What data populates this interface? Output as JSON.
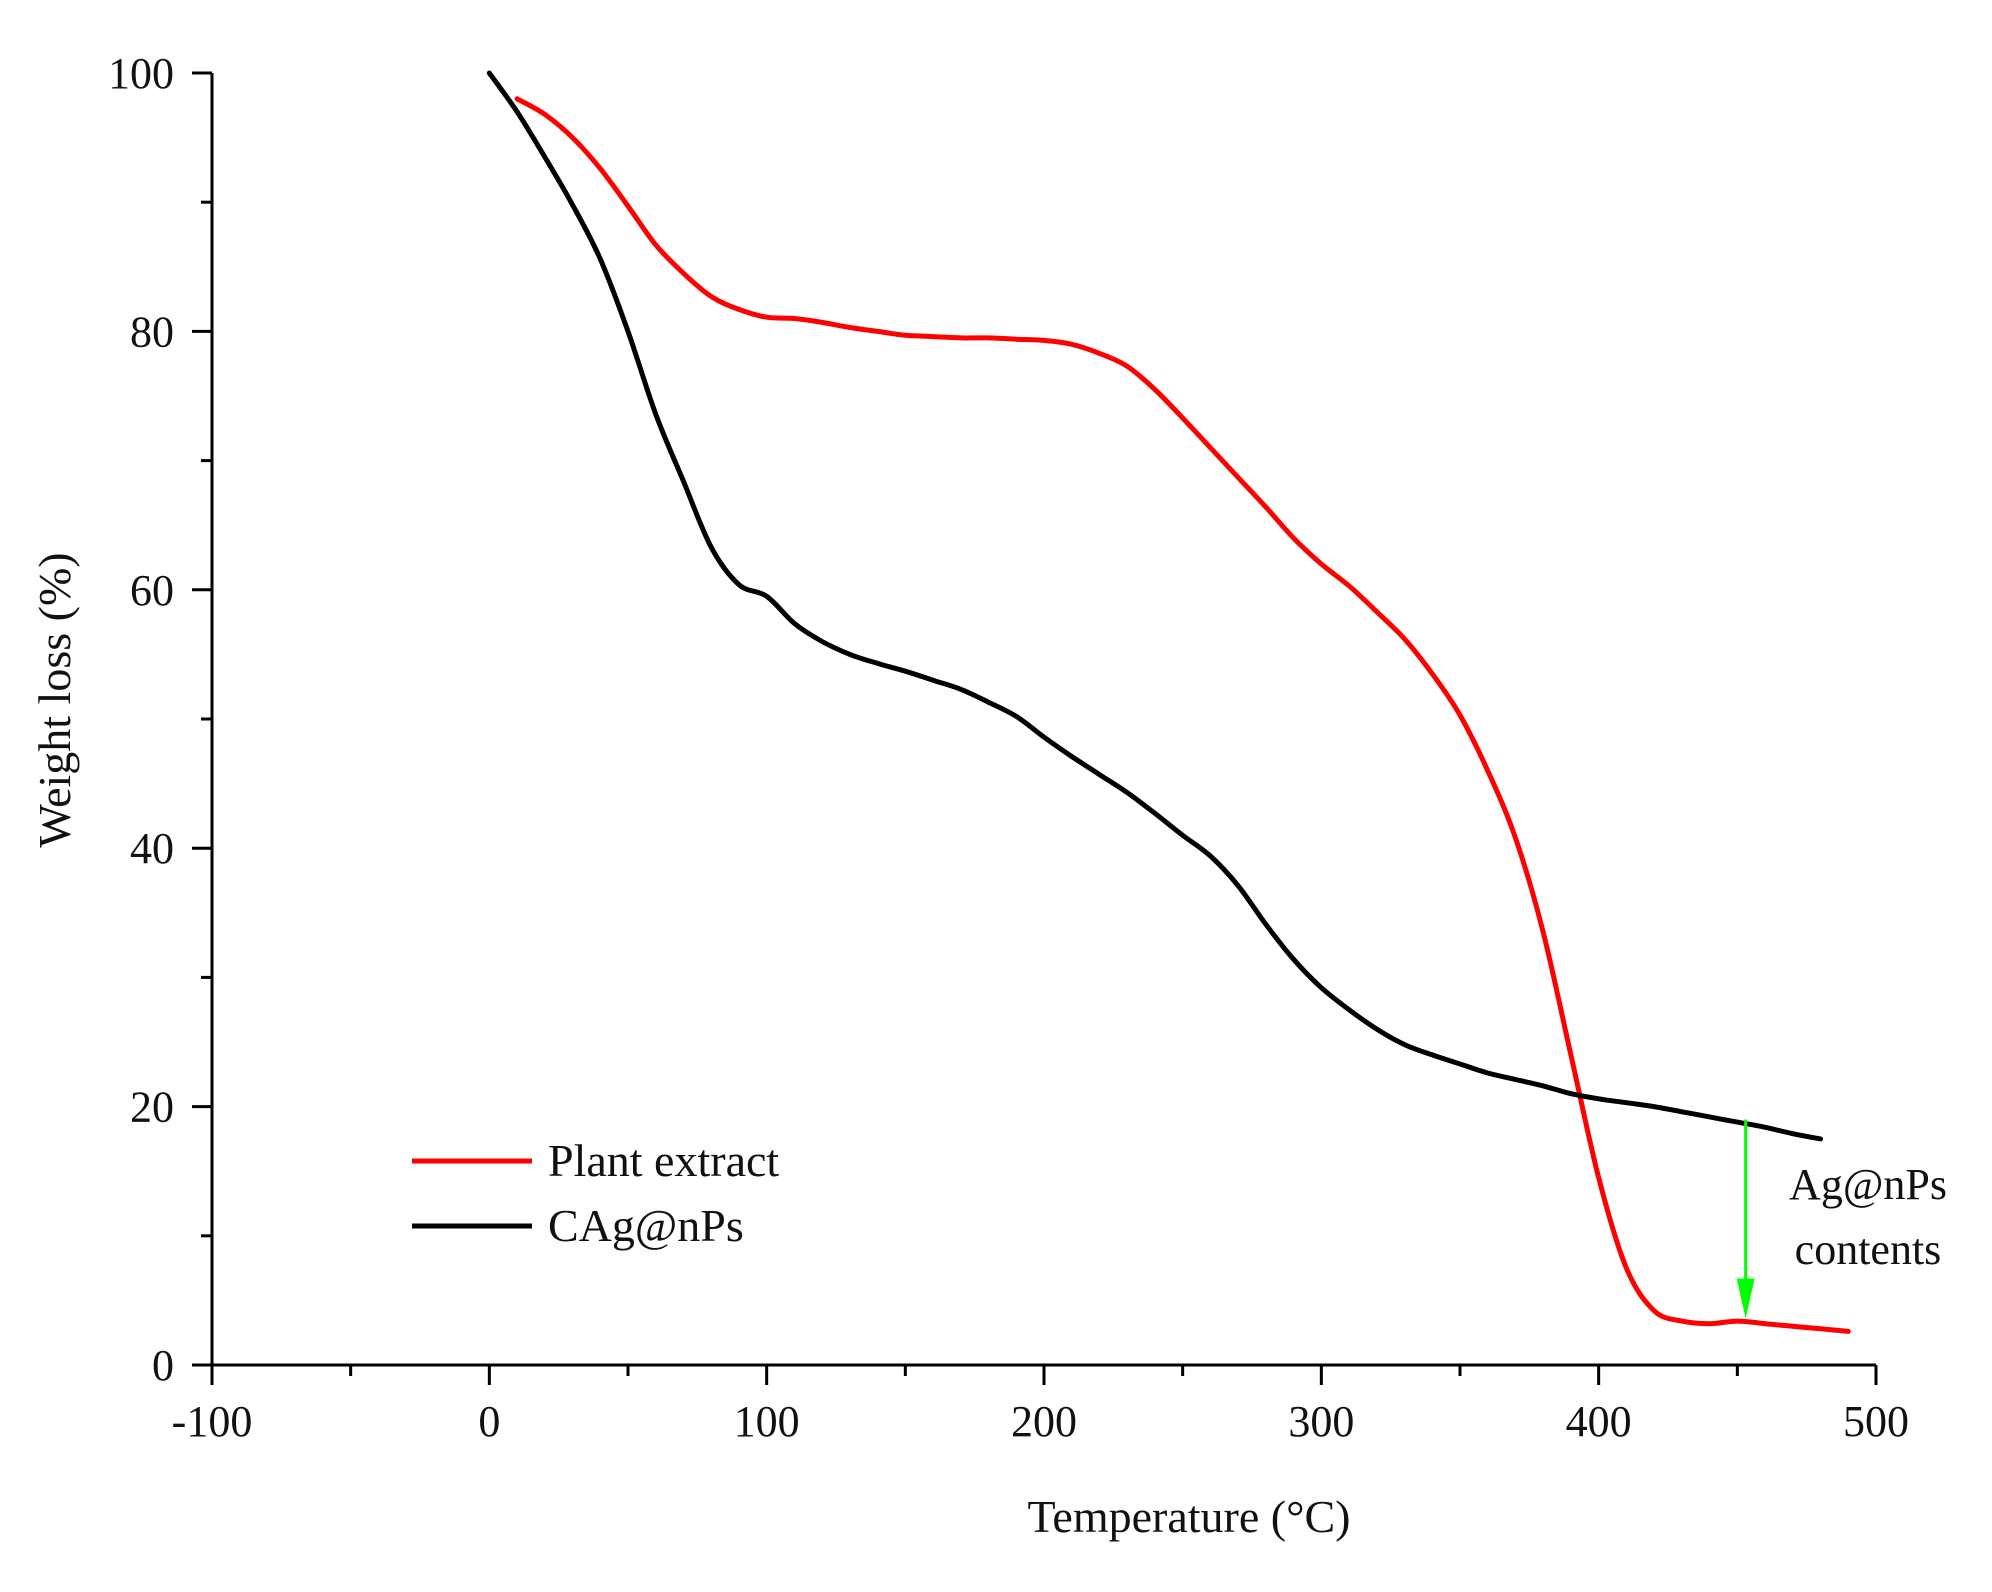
{
  "chart_data": {
    "type": "line",
    "title": "",
    "xlabel": "Temperature (°C)",
    "ylabel": "Weight loss (%)",
    "xlim": [
      -100,
      500
    ],
    "ylim": [
      0,
      100
    ],
    "x_ticks": [
      -100,
      0,
      100,
      200,
      300,
      400,
      500
    ],
    "x_tick_labels": [
      "-100",
      "0",
      "100",
      "200",
      "300",
      "400",
      "500"
    ],
    "x_minor_ticks": [
      -50,
      50,
      150,
      250,
      350,
      450
    ],
    "y_ticks": [
      0,
      20,
      40,
      60,
      80,
      100
    ],
    "y_tick_labels": [
      "0",
      "20",
      "40",
      "60",
      "80",
      "100"
    ],
    "y_minor_ticks": [
      10,
      30,
      50,
      70,
      90
    ],
    "grid": false,
    "legend_position": "lower-left",
    "series": [
      {
        "name": "Plant extract",
        "color": "#ff0000",
        "x": [
          10,
          20,
          30,
          40,
          50,
          60,
          70,
          80,
          90,
          100,
          110,
          120,
          130,
          140,
          150,
          160,
          170,
          180,
          190,
          200,
          210,
          220,
          230,
          240,
          250,
          260,
          270,
          280,
          290,
          300,
          310,
          320,
          330,
          340,
          350,
          360,
          370,
          380,
          390,
          400,
          410,
          420,
          430,
          440,
          450,
          460,
          470,
          480,
          490
        ],
        "y": [
          98,
          96.8,
          95,
          92.6,
          89.7,
          86.7,
          84.5,
          82.7,
          81.7,
          81.1,
          81,
          80.7,
          80.3,
          80,
          79.7,
          79.6,
          79.5,
          79.5,
          79.4,
          79.3,
          79,
          78.3,
          77.3,
          75.5,
          73.3,
          71,
          68.7,
          66.4,
          64,
          62,
          60.3,
          58.3,
          56.2,
          53.5,
          50.3,
          46,
          40.8,
          33.5,
          24,
          14.5,
          7.5,
          4.2,
          3.4,
          3.2,
          3.4,
          3.2,
          3,
          2.8,
          2.6
        ]
      },
      {
        "name": "CAg@nPs",
        "color": "#000000",
        "x": [
          0,
          10,
          20,
          30,
          40,
          50,
          60,
          70,
          80,
          90,
          100,
          110,
          120,
          130,
          140,
          150,
          160,
          170,
          180,
          190,
          200,
          210,
          220,
          230,
          240,
          250,
          260,
          270,
          280,
          290,
          300,
          310,
          320,
          330,
          340,
          350,
          360,
          370,
          380,
          390,
          400,
          410,
          420,
          430,
          440,
          450,
          460,
          470,
          480
        ],
        "y": [
          100,
          97,
          93.5,
          89.8,
          85.6,
          80,
          73.6,
          68.4,
          63.3,
          60.4,
          59.5,
          57.4,
          56,
          55,
          54.3,
          53.7,
          53,
          52.3,
          51.3,
          50.2,
          48.6,
          47.1,
          45.7,
          44.3,
          42.7,
          41,
          39.4,
          37.1,
          34.1,
          31.4,
          29.2,
          27.5,
          26,
          24.8,
          24,
          23.3,
          22.6,
          22.1,
          21.6,
          21,
          20.6,
          20.3,
          20,
          19.6,
          19.2,
          18.8,
          18.4,
          17.9,
          17.5
        ]
      }
    ],
    "annotation": {
      "lines": [
        "Ag@nPs",
        "contents"
      ],
      "arrow_color": "#00ff00",
      "arrow_x": 453,
      "arrow_from_y": 19,
      "arrow_to_y": 3.6
    }
  }
}
